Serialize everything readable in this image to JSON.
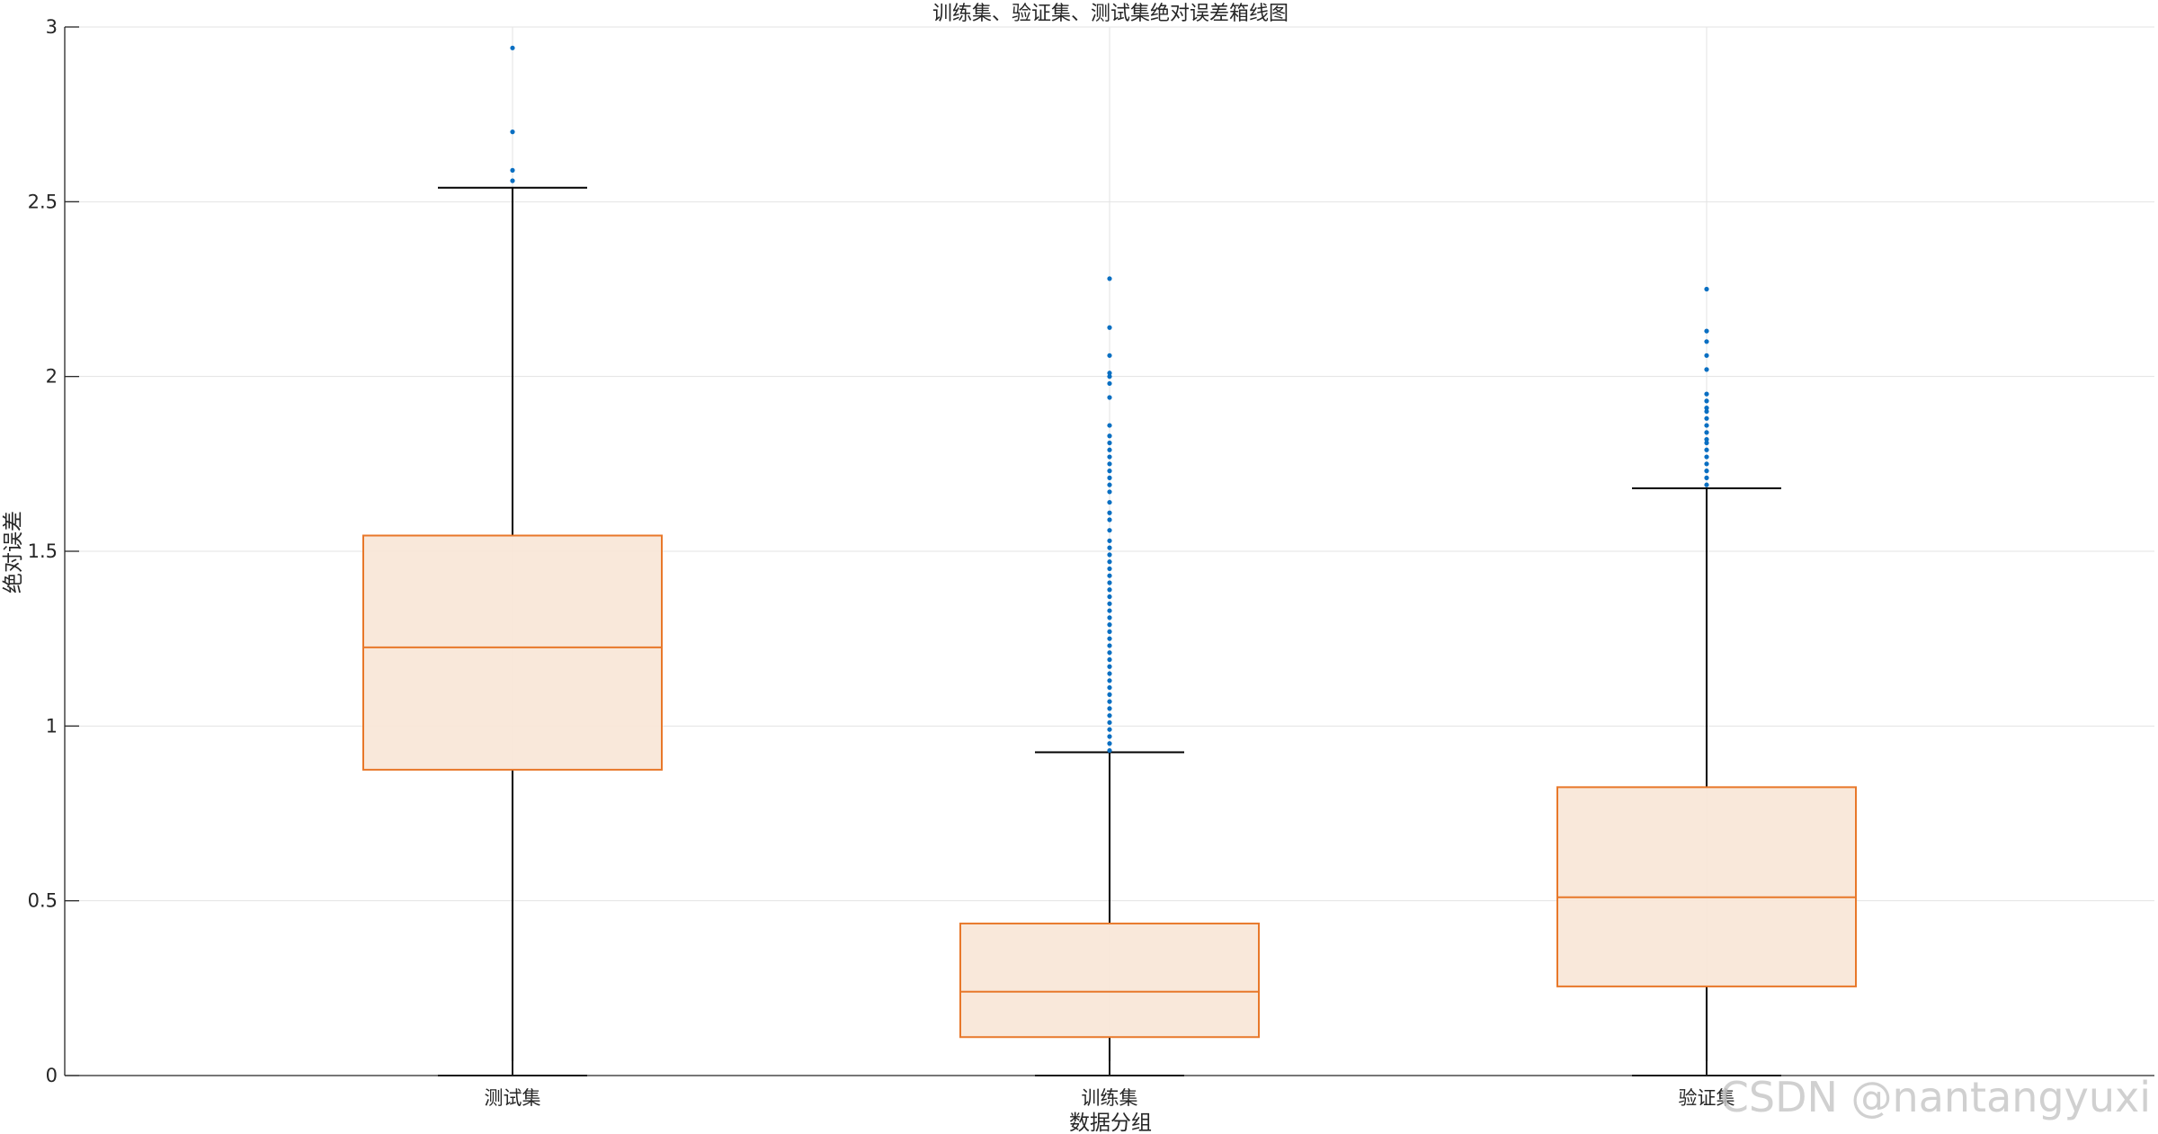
{
  "chart_data": {
    "type": "box",
    "title": "训练集、验证集、测试集绝对误差箱线图",
    "xlabel": "数据分组",
    "ylabel": "绝对误差",
    "ylim": [
      0,
      3
    ],
    "yticks": [
      0,
      0.5,
      1,
      1.5,
      2,
      2.5,
      3
    ],
    "ytick_labels": [
      "0",
      "0.5",
      "1",
      "1.5",
      "2",
      "2.5",
      "3"
    ],
    "grid": true,
    "categories": [
      "测试集",
      "训练集",
      "验证集"
    ],
    "boxes": [
      {
        "category": "测试集",
        "whisker_low": 0.0,
        "q1": 0.875,
        "median": 1.225,
        "q3": 1.545,
        "whisker_high": 2.54,
        "outliers": [
          2.56,
          2.59,
          2.7,
          2.94
        ]
      },
      {
        "category": "训练集",
        "whisker_low": 0.0,
        "q1": 0.11,
        "median": 0.24,
        "q3": 0.435,
        "whisker_high": 0.925,
        "outliers": [
          0.93,
          0.95,
          0.97,
          0.99,
          1.01,
          1.03,
          1.05,
          1.07,
          1.09,
          1.11,
          1.13,
          1.15,
          1.17,
          1.19,
          1.21,
          1.23,
          1.25,
          1.27,
          1.29,
          1.31,
          1.33,
          1.35,
          1.37,
          1.39,
          1.41,
          1.43,
          1.45,
          1.47,
          1.49,
          1.51,
          1.53,
          1.56,
          1.59,
          1.61,
          1.64,
          1.67,
          1.69,
          1.71,
          1.73,
          1.75,
          1.77,
          1.79,
          1.81,
          1.83,
          1.86,
          1.94,
          1.98,
          2.0,
          2.01,
          2.06,
          2.14,
          2.28
        ]
      },
      {
        "category": "验证集",
        "whisker_low": 0.0,
        "q1": 0.255,
        "median": 0.51,
        "q3": 0.825,
        "whisker_high": 1.68,
        "outliers": [
          1.69,
          1.71,
          1.73,
          1.75,
          1.77,
          1.79,
          1.81,
          1.82,
          1.84,
          1.86,
          1.88,
          1.9,
          1.91,
          1.93,
          1.95,
          2.02,
          2.06,
          2.1,
          2.13,
          2.25
        ]
      }
    ],
    "colors": {
      "box_edge": "#e8782a",
      "box_fill": "#f8e6d7",
      "median": "#e8782a",
      "whisker": "#000000",
      "outlier": "#0a6fc2",
      "grid": "#e3e3e3",
      "axis": "#262626"
    }
  },
  "watermark": "CSDN @nantangyuxi"
}
